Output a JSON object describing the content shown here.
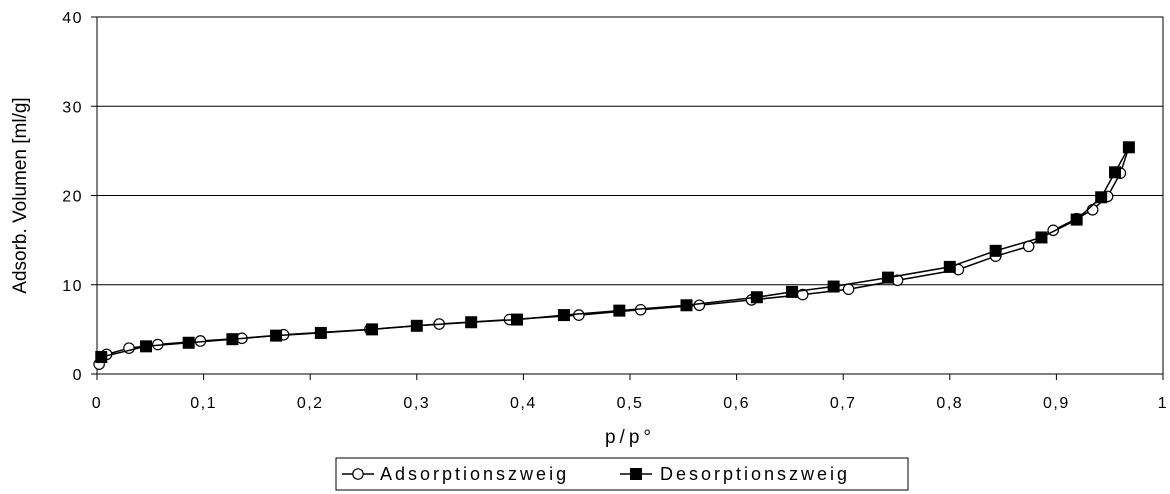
{
  "chart_data": {
    "type": "line",
    "title": "",
    "xlabel": "p/p°",
    "ylabel": "Adsorb. Volumen [ml/g]",
    "xlim": [
      0,
      1
    ],
    "ylim": [
      0,
      40
    ],
    "x_ticks": [
      0,
      0.1,
      0.2,
      0.3,
      0.4,
      0.5,
      0.6,
      0.7,
      0.8,
      0.9,
      1
    ],
    "x_tick_labels": [
      "0",
      "0,1",
      "0,2",
      "0,3",
      "0,4",
      "0,5",
      "0,6",
      "0,7",
      "0,8",
      "0,9",
      "1"
    ],
    "y_ticks": [
      0,
      10,
      20,
      30,
      40
    ],
    "y_tick_labels": [
      "0",
      "10",
      "20",
      "30",
      "40"
    ],
    "grid": "horizontal",
    "legend_position": "bottom",
    "series": [
      {
        "name": "Adsorptionszweig",
        "marker": "open-circle",
        "color": "#000000",
        "x": [
          0.002,
          0.009,
          0.03,
          0.057,
          0.097,
          0.136,
          0.175,
          0.256,
          0.321,
          0.387,
          0.452,
          0.51,
          0.565,
          0.614,
          0.662,
          0.705,
          0.751,
          0.808,
          0.843,
          0.874,
          0.897,
          0.919,
          0.934,
          0.948,
          0.96,
          0.968
        ],
        "y": [
          1.1,
          2.2,
          2.9,
          3.3,
          3.7,
          4.0,
          4.4,
          5.0,
          5.6,
          6.1,
          6.6,
          7.2,
          7.7,
          8.3,
          8.9,
          9.5,
          10.5,
          11.7,
          13.2,
          14.3,
          16.1,
          17.4,
          18.4,
          19.9,
          22.5,
          25.4
        ]
      },
      {
        "name": "Desorptionszweig",
        "marker": "filled-square",
        "color": "#000000",
        "x": [
          0.968,
          0.955,
          0.942,
          0.919,
          0.886,
          0.843,
          0.8,
          0.742,
          0.691,
          0.652,
          0.619,
          0.553,
          0.49,
          0.438,
          0.394,
          0.351,
          0.3,
          0.258,
          0.21,
          0.168,
          0.127,
          0.086,
          0.046,
          0.004
        ],
        "y": [
          25.4,
          22.6,
          19.8,
          17.3,
          15.3,
          13.8,
          12.0,
          10.8,
          9.8,
          9.2,
          8.6,
          7.7,
          7.1,
          6.6,
          6.1,
          5.8,
          5.4,
          5.0,
          4.6,
          4.3,
          3.9,
          3.5,
          3.1,
          1.9
        ]
      }
    ]
  }
}
